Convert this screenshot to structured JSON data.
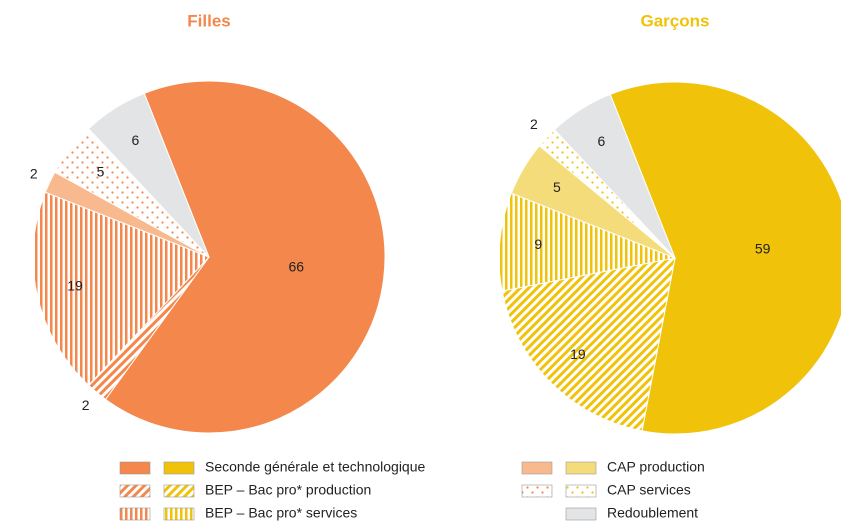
{
  "chart_data": [
    {
      "type": "pie",
      "title": "Filles",
      "values": [
        66,
        2,
        19,
        2,
        5,
        6
      ],
      "colors": [
        "#f4874b",
        "#f4874b",
        "#f4874b",
        "#f8b98f",
        "#f4874b",
        "#e3e4e6"
      ]
    },
    {
      "type": "pie",
      "title": "Garçons",
      "values": [
        59,
        19,
        9,
        5,
        2,
        6
      ],
      "colors": [
        "#f0c20a",
        "#f0c20a",
        "#f0c20a",
        "#f5dc7a",
        "#f0c20a",
        "#e3e4e6"
      ]
    }
  ],
  "patterns": [
    "solid",
    "diagonal",
    "vertical",
    "solid",
    "dots",
    "solid"
  ],
  "legend": [
    "Seconde générale et technologique",
    "BEP – Bac pro* production",
    "BEP – Bac pro* services",
    "CAP production",
    "CAP services",
    "Redoublement"
  ]
}
